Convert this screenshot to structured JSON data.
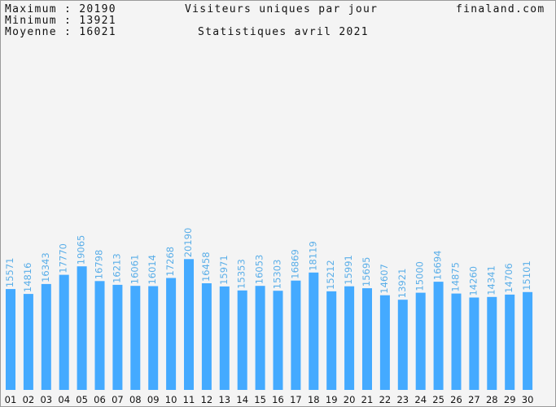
{
  "stats": {
    "max_label": "Maximum",
    "max_value": "20190",
    "min_label": "Minimum",
    "min_value": "13921",
    "avg_label": "Moyenne",
    "avg_value": "16021"
  },
  "site": "finaland.com",
  "chart_data": {
    "type": "bar",
    "title": "Visiteurs uniques par jour",
    "subtitle": "Statistiques avril 2021",
    "xlabel": "",
    "ylabel": "",
    "ylim": [
      0,
      40000
    ],
    "grid": false,
    "legend": "none",
    "categories": [
      "01",
      "02",
      "03",
      "04",
      "05",
      "06",
      "07",
      "08",
      "09",
      "10",
      "11",
      "12",
      "13",
      "14",
      "15",
      "16",
      "17",
      "18",
      "19",
      "20",
      "21",
      "22",
      "23",
      "24",
      "25",
      "26",
      "27",
      "28",
      "29",
      "30"
    ],
    "values": [
      15571,
      14816,
      16343,
      17770,
      19065,
      16798,
      16213,
      16061,
      16014,
      17268,
      20190,
      16458,
      15971,
      15353,
      16053,
      15303,
      16869,
      18119,
      15212,
      15991,
      15695,
      14607,
      13921,
      15000,
      16694,
      14875,
      14260,
      14341,
      14706,
      15101
    ],
    "bar_color": "#44aaff",
    "label_color": "#5aaee8"
  }
}
